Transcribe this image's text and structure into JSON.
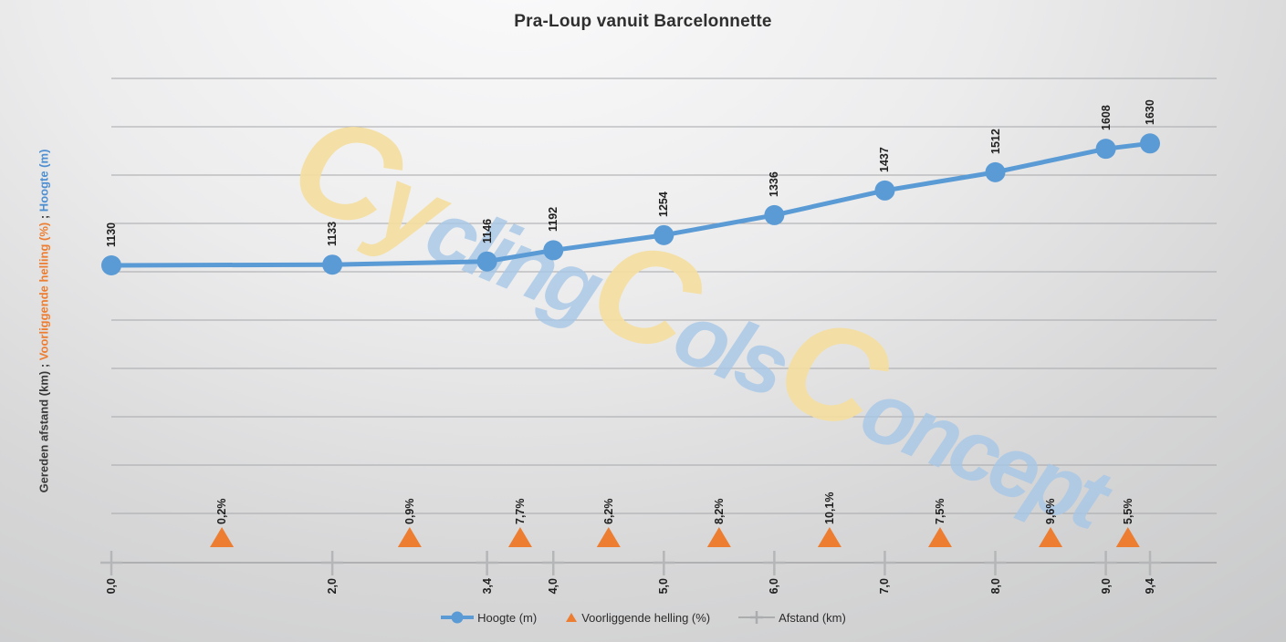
{
  "title": "Pra-Loup vanuit Barcelonnette",
  "y_axis_title": {
    "part_distance": "Gereden afstand (km)",
    "sep1": " ; ",
    "part_gradient": "Voorliggende helling (%)",
    "sep2": " ; ",
    "part_elevation": "Hoogte (m)"
  },
  "watermark": {
    "segments": [
      {
        "text": "C",
        "size": "big",
        "color": "yellow"
      },
      {
        "text": "y",
        "size": "mid",
        "color": "yellow"
      },
      {
        "text": "cling",
        "size": "small",
        "color": "blue"
      },
      {
        "text": "C",
        "size": "big",
        "color": "yellow"
      },
      {
        "text": "ols",
        "size": "small",
        "color": "blue"
      },
      {
        "text": "C",
        "size": "big",
        "color": "yellow"
      },
      {
        "text": "oncept",
        "size": "small",
        "color": "blue"
      }
    ]
  },
  "legend": {
    "items": [
      {
        "label": "Hoogte (m)",
        "marker": "line-circle"
      },
      {
        "label": "Voorliggende helling (%)",
        "marker": "triangle"
      },
      {
        "label": "Afstand (km)",
        "marker": "line-plus"
      }
    ]
  },
  "colors": {
    "elevation_blue": "#5B9BD5",
    "gradient_orange": "#EC7D31",
    "distance_gray": "#AAABAD",
    "gridline": "#A6A7A9",
    "axis_line": "#98999B",
    "tick": "#B5B6B8",
    "label_text": "#1F1F1F"
  },
  "chart_data": {
    "type": "line",
    "title": "Pra-Loup vanuit Barcelonnette",
    "xlabel": "",
    "ylabel": "Gereden afstand (km) ; Voorliggende helling (%) ; Hoogte (m)",
    "grid": true,
    "legend_position": "bottom",
    "x_tick_labels": [
      "0,0",
      "2,0",
      "3,4",
      "4,0",
      "5,0",
      "6,0",
      "7,0",
      "8,0",
      "9,0",
      "9,4"
    ],
    "series": [
      {
        "name": "Hoogte (m)",
        "type": "line",
        "marker": "circle",
        "color": "#5B9BD5",
        "x": [
          0,
          2,
          3.4,
          4,
          5,
          6,
          7,
          8,
          9,
          9.4
        ],
        "values": [
          1130,
          1133,
          1146,
          1192,
          1254,
          1336,
          1437,
          1512,
          1608,
          1630
        ],
        "point_labels": [
          "1130",
          "1133",
          "1146",
          "1192",
          "1254",
          "1336",
          "1437",
          "1512",
          "1608",
          "1630"
        ]
      },
      {
        "name": "Voorliggende helling (%)",
        "type": "scatter",
        "marker": "triangle",
        "color": "#EC7D31",
        "x": [
          1.0,
          2.7,
          3.7,
          4.5,
          5.5,
          6.5,
          7.5,
          8.5,
          9.2
        ],
        "values": [
          0.2,
          0.9,
          7.7,
          6.2,
          8.2,
          10.1,
          7.5,
          9.6,
          5.5
        ],
        "point_labels": [
          "0,2%",
          "0,9%",
          "7,7%",
          "6,2%",
          "8,2%",
          "10,1%",
          "7,5%",
          "9,6%",
          "5,5%"
        ]
      },
      {
        "name": "Afstand (km)",
        "type": "axis-line",
        "marker": "plus",
        "color": "#AAABAD",
        "x": [
          0,
          2,
          3.4,
          4,
          5,
          6,
          7,
          8,
          9,
          9.4
        ],
        "values": [
          0,
          2,
          3.4,
          4,
          5,
          6,
          7,
          8,
          9,
          9.4
        ]
      }
    ],
    "x_range_km": [
      0,
      9.4
    ],
    "elevation_range_m": [
      1130,
      1630
    ]
  }
}
